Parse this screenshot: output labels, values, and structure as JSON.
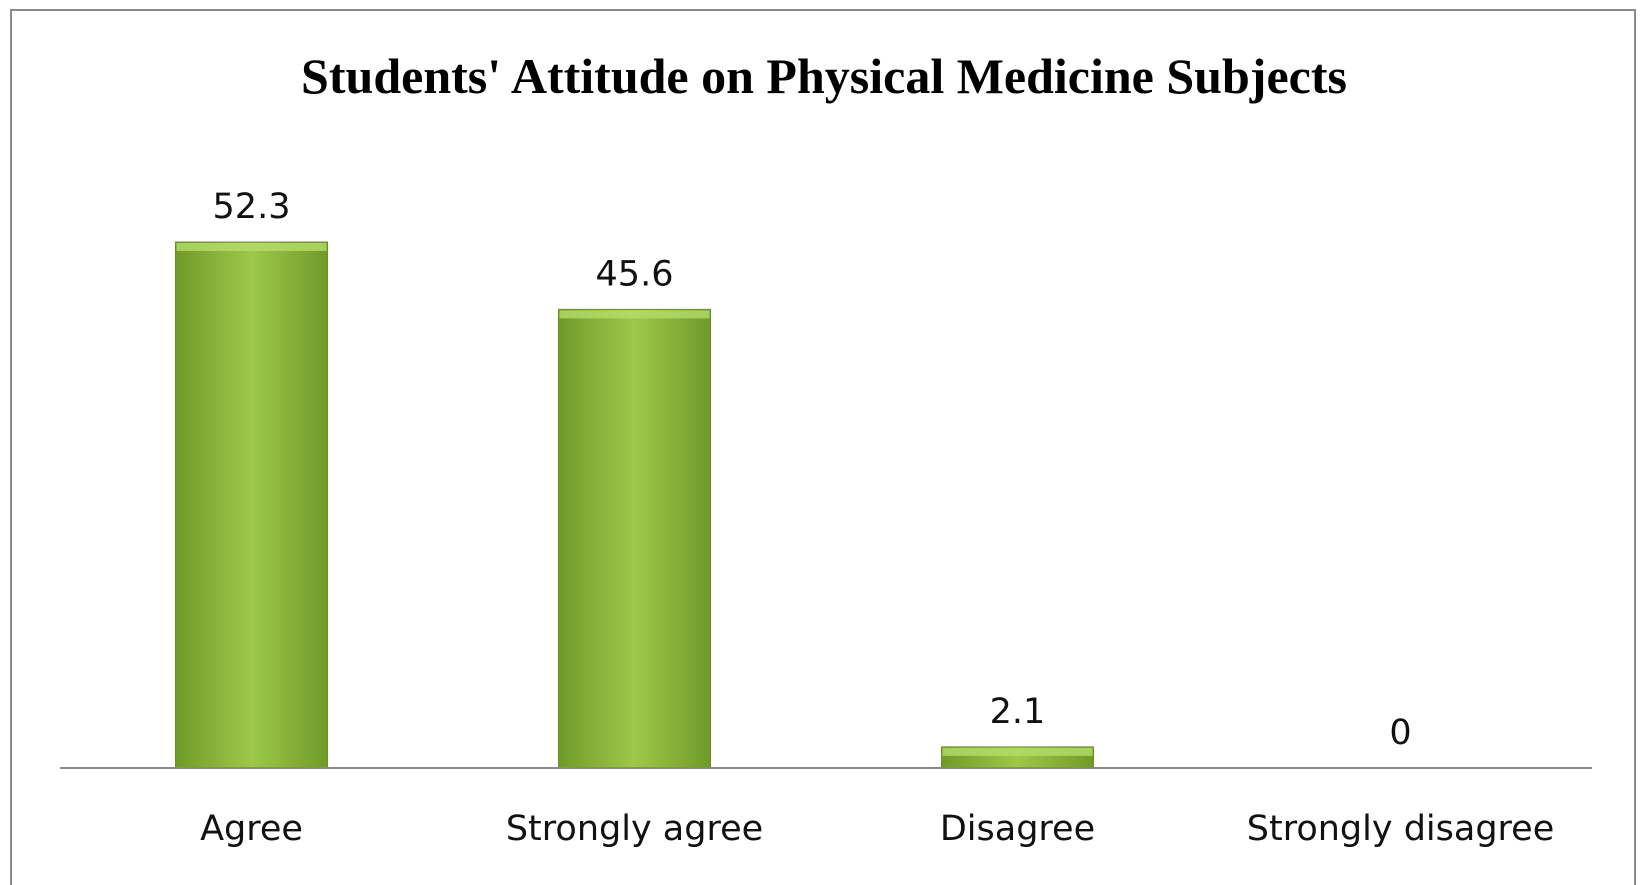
{
  "chart_data": {
    "type": "bar",
    "title": "Students' Attitude on Physical Medicine Subjects",
    "categories": [
      "Agree",
      "Strongly agree",
      "Disagree",
      "Strongly disagree"
    ],
    "values": [
      52.3,
      45.6,
      2.1,
      0
    ],
    "color": "#8db93f"
  }
}
